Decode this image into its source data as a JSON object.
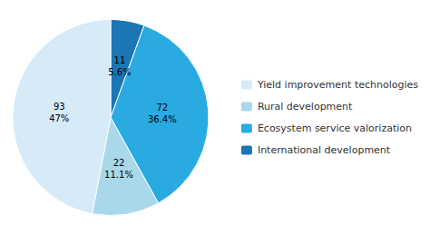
{
  "chart_data": {
    "type": "pie",
    "categories": [
      "International development",
      "Ecosystem service valorization",
      "Rural development",
      "Yield improvement technologies"
    ],
    "values": [
      11,
      72,
      22,
      93
    ],
    "value_labels": [
      "11\n5.6%",
      "72\n36.4%",
      "22\n11.1%",
      "93\n47%"
    ],
    "colors": [
      "#1a76b5",
      "#29abe2",
      "#a8d8ea",
      "#d6eaf8"
    ],
    "data_labels": true,
    "legend": "right"
  }
}
